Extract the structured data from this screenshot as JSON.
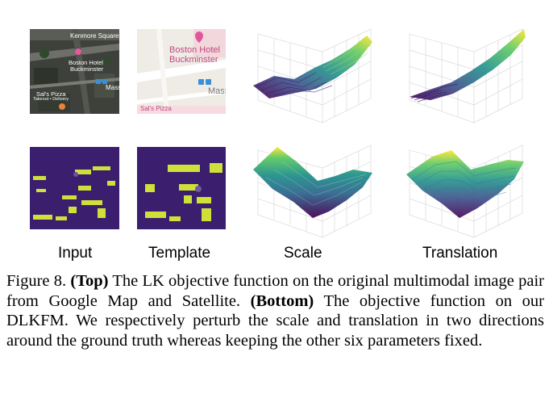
{
  "figure": {
    "map_input_labels": {
      "square": "Kenmore Square",
      "hotel_line1": "Boston Hotel",
      "hotel_line2": "Buckminster",
      "street": "Mass",
      "pizza_line1": "Sal's Pizza",
      "pizza_line2": "Takeout • Delivery"
    },
    "map_template_labels": {
      "hotel_line1": "Boston Hotel",
      "hotel_line2": "Buckminster",
      "street": "Mass",
      "pizza": "Sal's Pizza"
    },
    "columns": {
      "input": "Input",
      "template": "Template",
      "scale": "Scale",
      "translation": "Translation"
    }
  },
  "caption": {
    "number": "Figure 8.",
    "top_label": "(Top)",
    "top_text": " The LK objective function on the original multimodal image pair from Google Map and Satellite. ",
    "bottom_label": "(Bottom)",
    "bottom_text": " The objective function on our DLKFM. We respectively perturb the scale and translation in two directions around the ground truth whereas keeping the other six parameters fixed."
  },
  "colors": {
    "feature_bg": "#3b1f6e",
    "feature_fg": "#d4e33a",
    "surface_low": "#440154",
    "surface_high": "#fde725"
  }
}
